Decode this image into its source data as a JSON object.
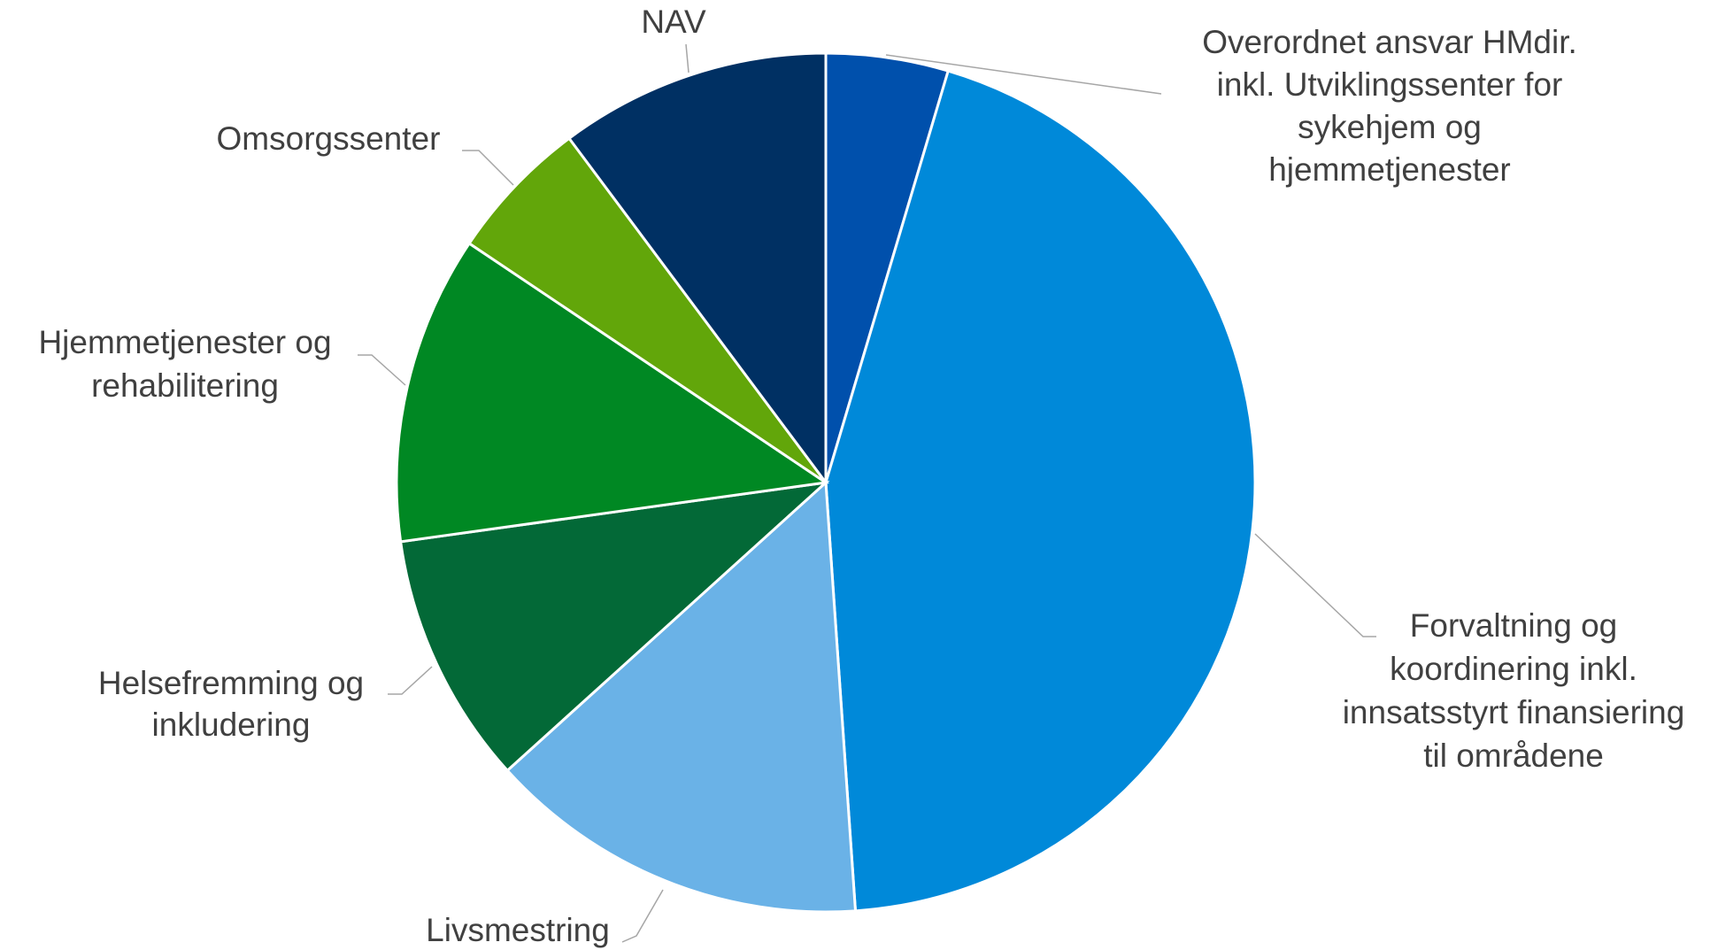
{
  "chart_data": {
    "type": "pie",
    "categories": [
      "Overordnet ansvar HMdir.\ninkl. Utviklingssenter for\nsykehjem og\nhjemmetjenester",
      "Forvaltning og\nkoordinering inkl.\ninnsatsstyrt finansiering\ntil områdene",
      "Livsmestring",
      "Helsefremming og\ninkludering",
      "Hjemmetjenester og\nrehabilitering",
      "Omsorgssenter",
      "NAV"
    ],
    "values": [
      4.6,
      44.3,
      14.4,
      9.5,
      11.6,
      5.4,
      10.2
    ],
    "colors": [
      "#0050ac",
      "#0089d9",
      "#6ab2e7",
      "#036937",
      "#008823",
      "#62a60a",
      "#003063"
    ]
  }
}
